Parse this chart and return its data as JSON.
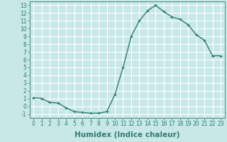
{
  "x": [
    0,
    1,
    2,
    3,
    4,
    5,
    6,
    7,
    8,
    9,
    10,
    11,
    12,
    13,
    14,
    15,
    16,
    17,
    18,
    19,
    20,
    21,
    22,
    23
  ],
  "y": [
    1.1,
    1.0,
    0.5,
    0.4,
    -0.2,
    -0.7,
    -0.8,
    -0.9,
    -0.9,
    -0.7,
    1.5,
    5.0,
    9.0,
    11.0,
    12.3,
    13.0,
    12.2,
    11.5,
    11.2,
    10.5,
    9.2,
    8.5,
    6.5,
    6.5
  ],
  "line_color": "#2d7d6e",
  "marker": "+",
  "marker_color": "#2d7d6e",
  "bg_color": "#c8e8e8",
  "grid_color": "#ffffff",
  "xlabel": "Humidex (Indice chaleur)",
  "xlim": [
    -0.5,
    23.5
  ],
  "ylim": [
    -1.5,
    13.5
  ],
  "yticks": [
    -1,
    0,
    1,
    2,
    3,
    4,
    5,
    6,
    7,
    8,
    9,
    10,
    11,
    12,
    13
  ],
  "xticks": [
    0,
    1,
    2,
    3,
    4,
    5,
    6,
    7,
    8,
    9,
    10,
    11,
    12,
    13,
    14,
    15,
    16,
    17,
    18,
    19,
    20,
    21,
    22,
    23
  ],
  "tick_label_fontsize": 5.5,
  "xlabel_fontsize": 7.5,
  "axis_color": "#2d7d6e",
  "line_width": 1.0,
  "marker_size": 3.5
}
